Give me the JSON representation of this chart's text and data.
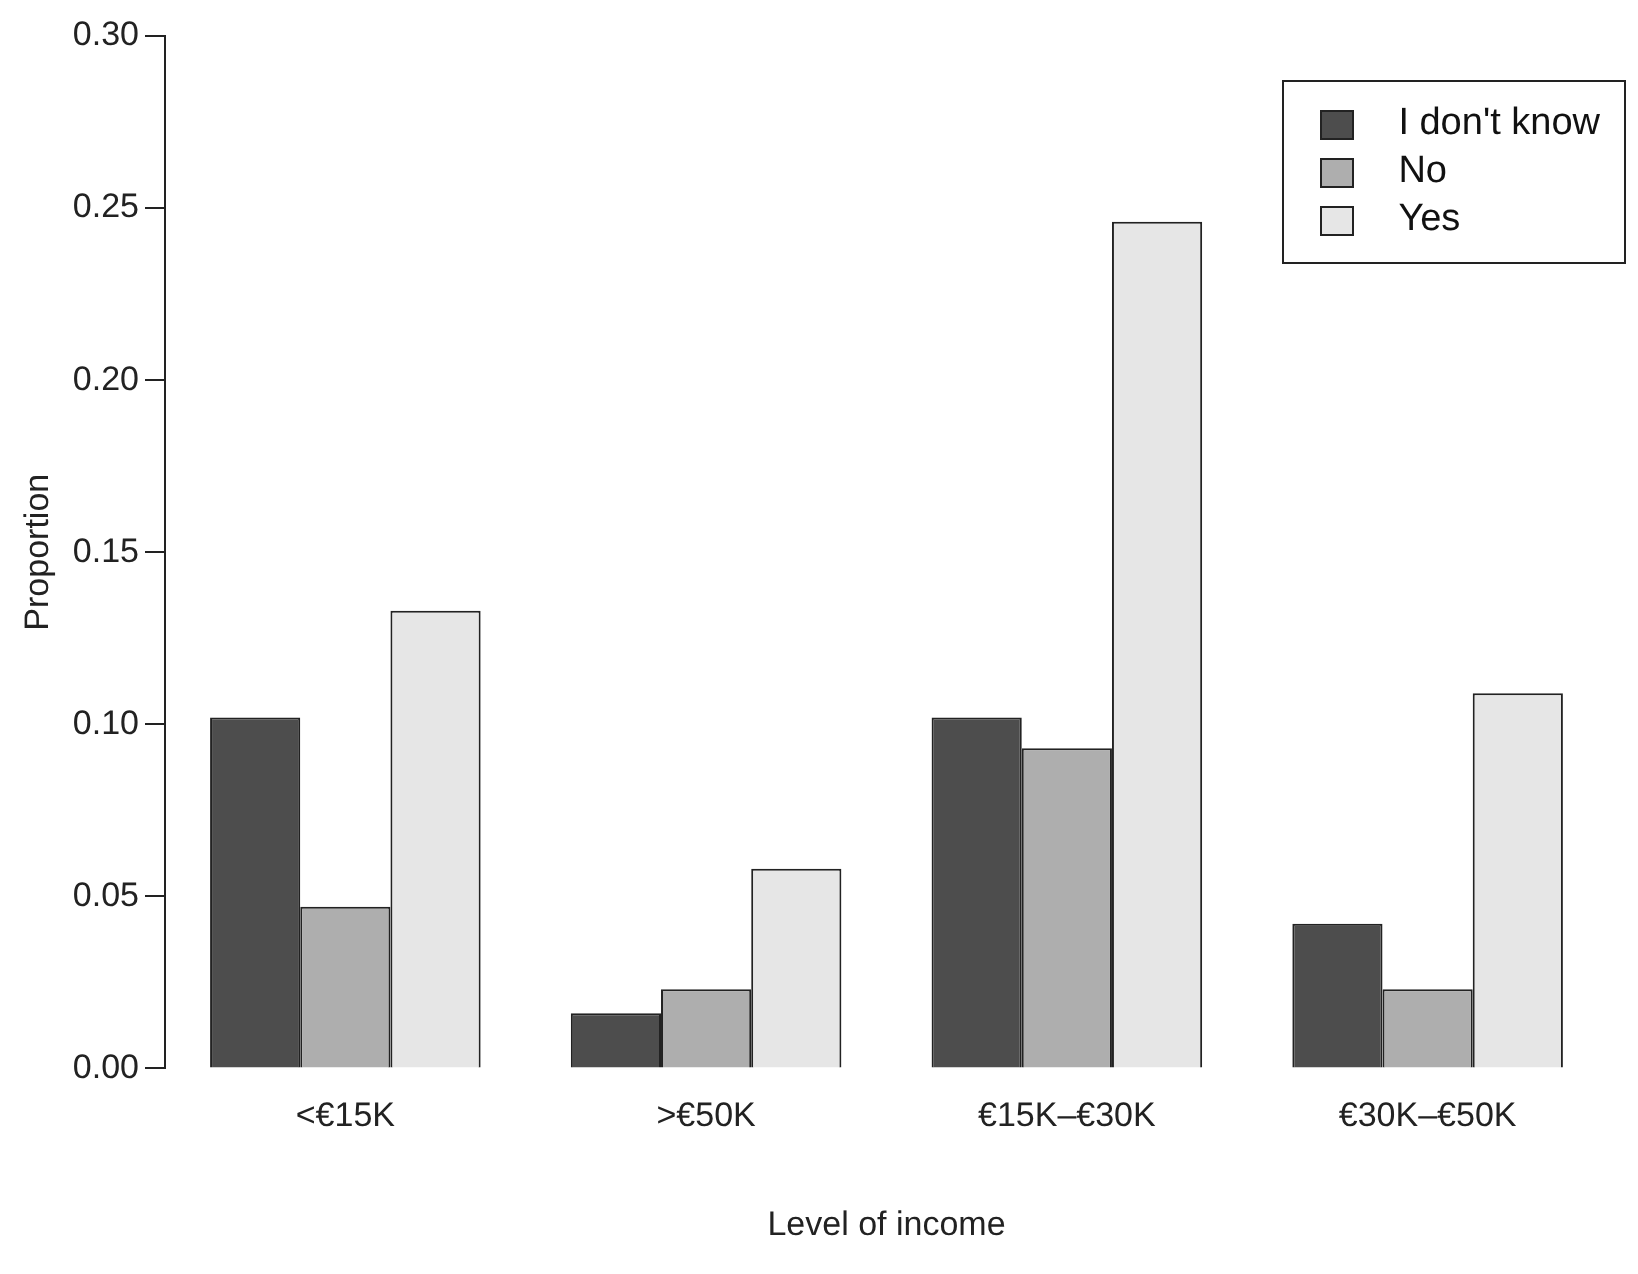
{
  "chart_data": {
    "type": "bar",
    "xlabel": "Level of income",
    "ylabel": "Proportion",
    "categories": [
      "<€15K",
      ">€50K",
      "€15K–€30K",
      "€30K–€50K"
    ],
    "series": [
      {
        "name": "I don't know",
        "color": "#4d4d4d",
        "values": [
          0.102,
          0.016,
          0.102,
          0.042
        ]
      },
      {
        "name": "No",
        "color": "#aeaeae",
        "values": [
          0.047,
          0.023,
          0.093,
          0.023
        ]
      },
      {
        "name": "Yes",
        "color": "#e6e6e6",
        "values": [
          0.133,
          0.058,
          0.246,
          0.109
        ]
      }
    ],
    "ylim": [
      0,
      0.3
    ],
    "yticks": [
      {
        "value": 0,
        "label": "0.00"
      },
      0.05,
      {
        "value": 0.1,
        "label": "0.10"
      },
      0.15,
      {
        "value": 0.2,
        "label": "0.20"
      },
      0.25,
      {
        "value": 0.3,
        "label": "0.30"
      }
    ],
    "grid": false,
    "legend": "top right"
  }
}
